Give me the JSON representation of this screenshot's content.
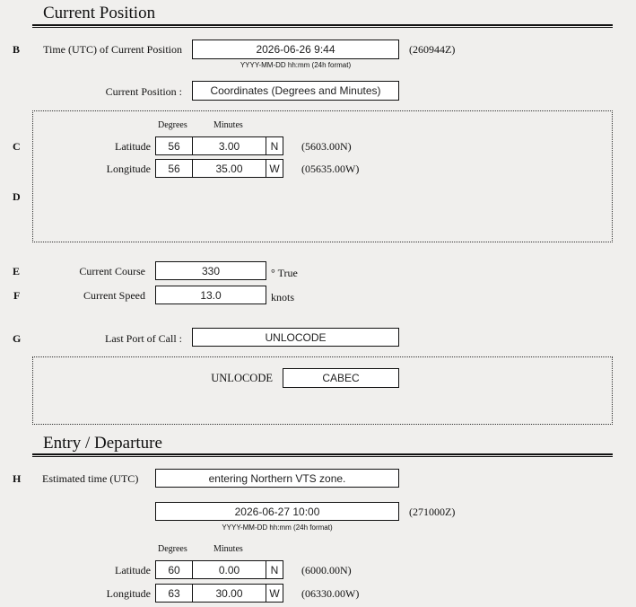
{
  "current_position": {
    "title": "Current Position",
    "B": {
      "letter": "B",
      "label": "Time (UTC) of Current Position",
      "value": "2026-06-26 9:44",
      "code": "(260944Z)",
      "hint": "YYYY-MM-DD hh:mm (24h format)"
    },
    "position_type": {
      "label": "Current Position :",
      "value": "Coordinates (Degrees and Minutes)"
    },
    "C": {
      "letter": "C",
      "degrees_header": "Degrees",
      "minutes_header": "Minutes",
      "latitude": {
        "label": "Latitude",
        "degrees": "56",
        "minutes": "3.00",
        "hemisphere": "N",
        "code": "(5603.00N)"
      },
      "longitude": {
        "label": "Longitude",
        "degrees": "56",
        "minutes": "35.00",
        "hemisphere": "W",
        "code": "(05635.00W)"
      }
    },
    "D": {
      "letter": "D"
    },
    "E": {
      "letter": "E",
      "label": "Current Course",
      "value": "330",
      "unit": "° True"
    },
    "F": {
      "letter": "F",
      "label": "Current Speed",
      "value": "13.0",
      "unit": "knots"
    },
    "G": {
      "letter": "G",
      "label": "Last Port of Call :",
      "value": "UNLOCODE",
      "sub_label": "UNLOCODE",
      "sub_value": "CABEC"
    }
  },
  "entry_departure": {
    "title": "Entry / Departure",
    "H": {
      "letter": "H",
      "label": "Estimated time (UTC)",
      "event": "entering Northern VTS zone.",
      "value": "2026-06-27 10:00",
      "code": "(271000Z)",
      "hint": "YYYY-MM-DD hh:mm (24h format)"
    },
    "degrees_header": "Degrees",
    "minutes_header": "Minutes",
    "latitude": {
      "label": "Latitude",
      "degrees": "60",
      "minutes": "0.00",
      "hemisphere": "N",
      "code": "(6000.00N)"
    },
    "longitude": {
      "label": "Longitude",
      "degrees": "63",
      "minutes": "30.00",
      "hemisphere": "W",
      "code": "(06330.00W)"
    }
  }
}
